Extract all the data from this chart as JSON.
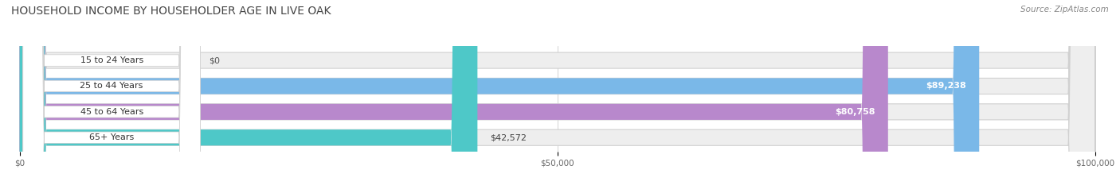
{
  "title": "HOUSEHOLD INCOME BY HOUSEHOLDER AGE IN LIVE OAK",
  "source": "Source: ZipAtlas.com",
  "categories": [
    "15 to 24 Years",
    "25 to 44 Years",
    "45 to 64 Years",
    "65+ Years"
  ],
  "values": [
    0,
    89238,
    80758,
    42572
  ],
  "bar_colors": [
    "#f0a0aa",
    "#7ab8e8",
    "#b888cc",
    "#4ec8c8"
  ],
  "value_labels": [
    "$0",
    "$89,238",
    "$80,758",
    "$42,572"
  ],
  "bg_bar_color": "#eeeeee",
  "bar_bg_stroke": "#d8d8d8",
  "xlim_max": 100000,
  "xticks": [
    0,
    50000,
    100000
  ],
  "xtick_labels": [
    "$0",
    "$50,000",
    "$100,000"
  ],
  "bar_height": 0.62,
  "figsize": [
    14.06,
    2.33
  ],
  "dpi": 100,
  "title_fontsize": 10,
  "source_fontsize": 7.5,
  "label_fontsize": 8,
  "value_fontsize": 8
}
